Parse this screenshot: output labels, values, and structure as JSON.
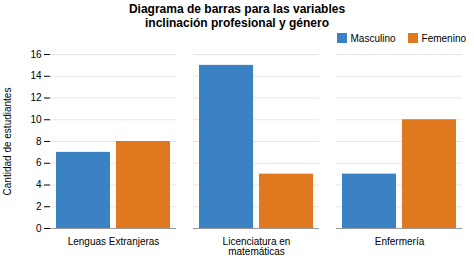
{
  "chart_data": {
    "type": "bar",
    "title": "Diagrama de barras para las variables\ninclinación profesional y género",
    "ylabel": "Cantidad de estudiantes",
    "categories": [
      "Lenguas Extranjeras",
      "Licenciatura en\nmatemáticas",
      "Enfermería"
    ],
    "series": [
      {
        "name": "Masculino",
        "color": "#3B82C4",
        "values": [
          7,
          15,
          5
        ]
      },
      {
        "name": "Femenino",
        "color": "#E07820",
        "values": [
          8,
          5,
          10
        ]
      }
    ],
    "ylim": [
      0,
      16
    ],
    "yticks": [
      0,
      2,
      4,
      6,
      8,
      10,
      12,
      14,
      16
    ],
    "grid": true,
    "legend": "upper right"
  }
}
